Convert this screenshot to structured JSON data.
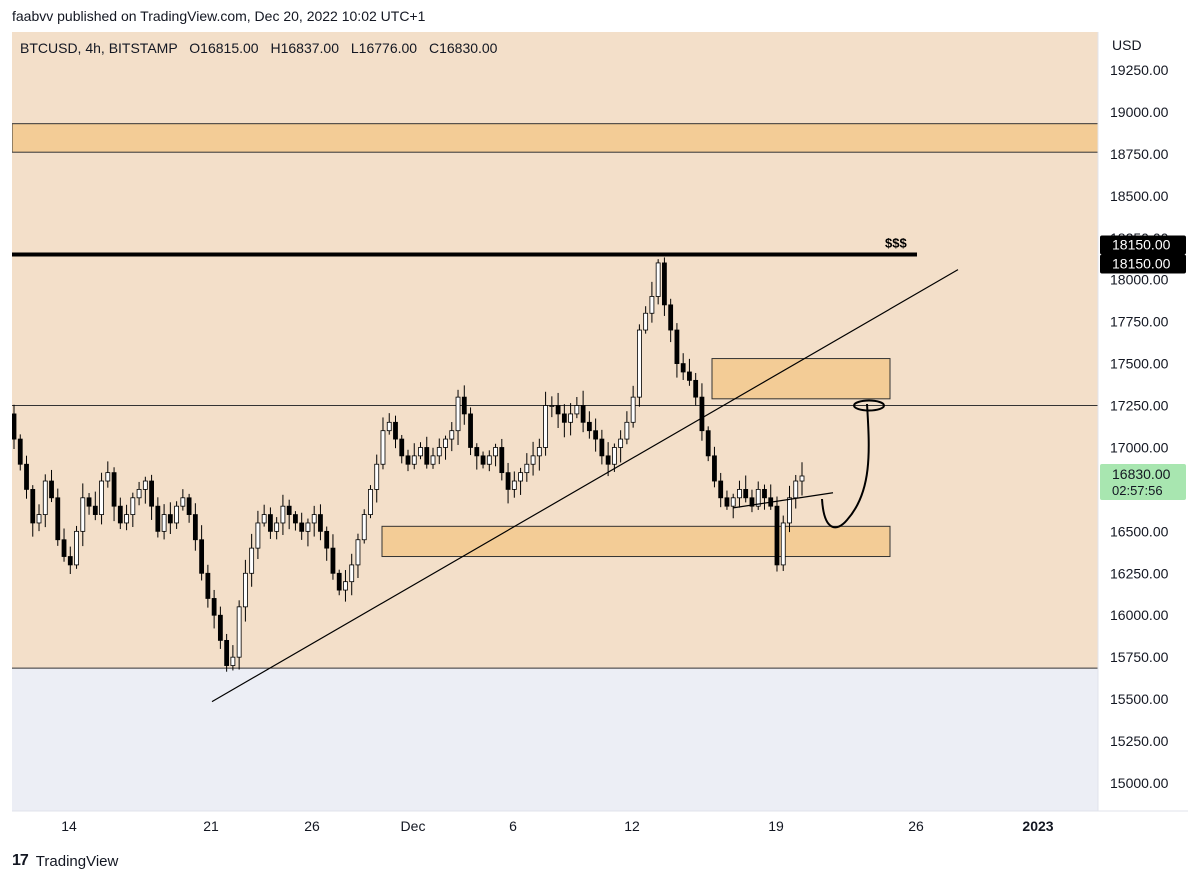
{
  "header": {
    "published": "faabvv published on TradingView.com, Dec 20, 2022 10:02 UTC+1"
  },
  "footer": {
    "brand": "TradingView"
  },
  "chart_data": {
    "type": "candlestick",
    "title": "BTCUSD, 4h, BITSTAMP",
    "ohlc": {
      "O": "O16815.00",
      "H": "H16837.00",
      "L": "L16776.00",
      "C": "C16830.00"
    },
    "currency": "USD",
    "ylim": [
      14850,
      19450
    ],
    "y_ticks": [
      19250,
      19000,
      18750,
      18500,
      18250,
      18000,
      17750,
      17500,
      17250,
      17000,
      16750,
      16500,
      16250,
      16000,
      15750,
      15500,
      15250,
      15000
    ],
    "x_ticks": [
      "14",
      "21",
      "26",
      "Dec",
      "6",
      "12",
      "19",
      "26",
      "2023"
    ],
    "price_labels": [
      {
        "text": "18150.00",
        "color": "#000000"
      },
      {
        "text": "18150.00",
        "color": "#000000"
      },
      {
        "text": "16830.00",
        "sub": "02:57:56",
        "color": "#a8e6b0"
      }
    ],
    "annotation": "$$$",
    "colors": {
      "range_fill": "#f3dfc9",
      "zone_fill": "#f3cc96",
      "bg": "#eceef5",
      "up": "#ffffff",
      "down": "#000000"
    },
    "key_levels": [
      18150,
      17250
    ],
    "zones": [
      {
        "y_top": 18930,
        "y_bot": 18760
      },
      {
        "y_top": 17530,
        "y_bot": 17290
      },
      {
        "y_top": 16530,
        "y_bot": 16350
      }
    ],
    "closes_approx": [
      17050,
      16900,
      16750,
      16550,
      16600,
      16800,
      16700,
      16450,
      16350,
      16300,
      16500,
      16700,
      16650,
      16600,
      16800,
      16850,
      16650,
      16550,
      16600,
      16700,
      16750,
      16800,
      16650,
      16500,
      16600,
      16550,
      16650,
      16700,
      16600,
      16450,
      16250,
      16100,
      16000,
      15850,
      15700,
      15750,
      16050,
      16250,
      16400,
      16550,
      16600,
      16500,
      16550,
      16650,
      16600,
      16550,
      16500,
      16550,
      16600,
      16500,
      16400,
      16250,
      16150,
      16200,
      16300,
      16450,
      16600,
      16750,
      16900,
      17100,
      17150,
      17050,
      16950,
      16900,
      16950,
      17000,
      16900,
      16950,
      17000,
      17050,
      17100,
      17300,
      17200,
      17000,
      16950,
      16900,
      16950,
      17000,
      16850,
      16750,
      16800,
      16850,
      16900,
      16950,
      17000,
      17250,
      17250,
      17200,
      17150,
      17200,
      17250,
      17150,
      17100,
      17050,
      16950,
      16900,
      17000,
      17050,
      17150,
      17300,
      17700,
      17800,
      17900,
      18100,
      17850,
      17700,
      17500,
      17450,
      17400,
      17300,
      17100,
      16950,
      16800,
      16700,
      16650,
      16700,
      16750,
      16700,
      16650,
      16750,
      16700,
      16650,
      16300,
      16550,
      16700,
      16800,
      16830
    ]
  }
}
